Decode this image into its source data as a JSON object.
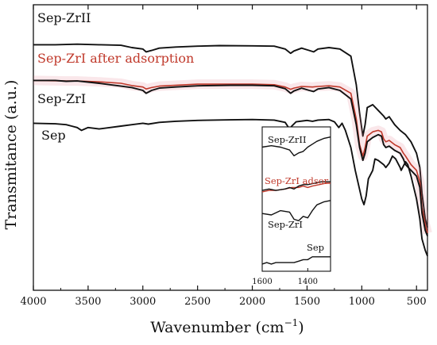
{
  "chart_data": {
    "type": "line",
    "xlabel": "Wavenumber (cm",
    "xlabel_sup": "−1",
    "xlabel_close": ")",
    "ylabel": "Transmitance (a.u.)",
    "xlim": [
      4000,
      400
    ],
    "x_reversed": true,
    "ylim": [
      0,
      1
    ],
    "y_ticks_shown": false,
    "grid": false,
    "legend": "none",
    "xticks": [
      4000,
      3500,
      3000,
      2500,
      2000,
      1500,
      1000,
      500
    ],
    "xtick_labels": [
      "4000",
      "3500",
      "3000",
      "2500",
      "2000",
      "1500",
      "1000",
      "500"
    ],
    "series": [
      {
        "name": "Sep-ZrII",
        "color": "#111111",
        "points": [
          [
            4000,
            0.86
          ],
          [
            3800,
            0.86
          ],
          [
            3600,
            0.862
          ],
          [
            3400,
            0.86
          ],
          [
            3200,
            0.858
          ],
          [
            3100,
            0.85
          ],
          [
            3000,
            0.845
          ],
          [
            2970,
            0.835
          ],
          [
            2920,
            0.84
          ],
          [
            2850,
            0.848
          ],
          [
            2700,
            0.852
          ],
          [
            2500,
            0.855
          ],
          [
            2300,
            0.857
          ],
          [
            2000,
            0.856
          ],
          [
            1800,
            0.855
          ],
          [
            1700,
            0.845
          ],
          [
            1650,
            0.83
          ],
          [
            1620,
            0.838
          ],
          [
            1550,
            0.848
          ],
          [
            1480,
            0.84
          ],
          [
            1440,
            0.835
          ],
          [
            1400,
            0.845
          ],
          [
            1300,
            0.85
          ],
          [
            1200,
            0.845
          ],
          [
            1100,
            0.82
          ],
          [
            1050,
            0.72
          ],
          [
            1020,
            0.62
          ],
          [
            990,
            0.54
          ],
          [
            970,
            0.58
          ],
          [
            950,
            0.64
          ],
          [
            900,
            0.65
          ],
          [
            850,
            0.63
          ],
          [
            800,
            0.61
          ],
          [
            780,
            0.6
          ],
          [
            750,
            0.608
          ],
          [
            700,
            0.58
          ],
          [
            650,
            0.56
          ],
          [
            600,
            0.545
          ],
          [
            550,
            0.52
          ],
          [
            500,
            0.48
          ],
          [
            470,
            0.43
          ],
          [
            450,
            0.34
          ],
          [
            420,
            0.25
          ],
          [
            400,
            0.22
          ]
        ]
      },
      {
        "name": "Sep-ZrI after adsorption",
        "color": "#c0392b",
        "points": [
          [
            4000,
            0.735
          ],
          [
            3700,
            0.733
          ],
          [
            3600,
            0.733
          ],
          [
            3400,
            0.73
          ],
          [
            3200,
            0.725
          ],
          [
            3100,
            0.717
          ],
          [
            3000,
            0.712
          ],
          [
            2970,
            0.705
          ],
          [
            2920,
            0.71
          ],
          [
            2850,
            0.715
          ],
          [
            2500,
            0.722
          ],
          [
            2000,
            0.722
          ],
          [
            1800,
            0.72
          ],
          [
            1700,
            0.712
          ],
          [
            1650,
            0.704
          ],
          [
            1620,
            0.708
          ],
          [
            1550,
            0.714
          ],
          [
            1450,
            0.712
          ],
          [
            1400,
            0.714
          ],
          [
            1300,
            0.716
          ],
          [
            1200,
            0.712
          ],
          [
            1100,
            0.69
          ],
          [
            1050,
            0.6
          ],
          [
            1020,
            0.51
          ],
          [
            990,
            0.47
          ],
          [
            970,
            0.5
          ],
          [
            950,
            0.54
          ],
          [
            900,
            0.555
          ],
          [
            850,
            0.56
          ],
          [
            820,
            0.555
          ],
          [
            800,
            0.53
          ],
          [
            780,
            0.52
          ],
          [
            750,
            0.525
          ],
          [
            700,
            0.51
          ],
          [
            650,
            0.5
          ],
          [
            620,
            0.48
          ],
          [
            600,
            0.47
          ],
          [
            550,
            0.44
          ],
          [
            500,
            0.42
          ],
          [
            470,
            0.38
          ],
          [
            450,
            0.29
          ],
          [
            420,
            0.23
          ],
          [
            400,
            0.2
          ]
        ]
      },
      {
        "name": "Sep-ZrI",
        "color": "#111111",
        "points": [
          [
            4000,
            0.735
          ],
          [
            3800,
            0.735
          ],
          [
            3700,
            0.732
          ],
          [
            3600,
            0.733
          ],
          [
            3400,
            0.725
          ],
          [
            3300,
            0.72
          ],
          [
            3200,
            0.715
          ],
          [
            3100,
            0.71
          ],
          [
            3000,
            0.7
          ],
          [
            2970,
            0.69
          ],
          [
            2920,
            0.7
          ],
          [
            2850,
            0.708
          ],
          [
            2700,
            0.712
          ],
          [
            2500,
            0.716
          ],
          [
            2200,
            0.718
          ],
          [
            2000,
            0.718
          ],
          [
            1800,
            0.716
          ],
          [
            1700,
            0.706
          ],
          [
            1650,
            0.69
          ],
          [
            1620,
            0.698
          ],
          [
            1550,
            0.708
          ],
          [
            1480,
            0.7
          ],
          [
            1440,
            0.696
          ],
          [
            1400,
            0.705
          ],
          [
            1300,
            0.71
          ],
          [
            1200,
            0.7
          ],
          [
            1100,
            0.67
          ],
          [
            1050,
            0.58
          ],
          [
            1020,
            0.5
          ],
          [
            990,
            0.455
          ],
          [
            970,
            0.48
          ],
          [
            950,
            0.52
          ],
          [
            900,
            0.535
          ],
          [
            850,
            0.545
          ],
          [
            820,
            0.54
          ],
          [
            800,
            0.51
          ],
          [
            780,
            0.5
          ],
          [
            750,
            0.505
          ],
          [
            700,
            0.49
          ],
          [
            650,
            0.48
          ],
          [
            620,
            0.46
          ],
          [
            600,
            0.44
          ],
          [
            550,
            0.42
          ],
          [
            500,
            0.4
          ],
          [
            470,
            0.36
          ],
          [
            450,
            0.27
          ],
          [
            420,
            0.21
          ],
          [
            400,
            0.19
          ]
        ]
      },
      {
        "name": "Sep",
        "color": "#111111",
        "points": [
          [
            4000,
            0.585
          ],
          [
            3800,
            0.583
          ],
          [
            3700,
            0.58
          ],
          [
            3650,
            0.575
          ],
          [
            3600,
            0.57
          ],
          [
            3560,
            0.56
          ],
          [
            3500,
            0.57
          ],
          [
            3400,
            0.565
          ],
          [
            3300,
            0.57
          ],
          [
            3200,
            0.575
          ],
          [
            3100,
            0.58
          ],
          [
            3000,
            0.585
          ],
          [
            2950,
            0.582
          ],
          [
            2850,
            0.588
          ],
          [
            2700,
            0.592
          ],
          [
            2500,
            0.595
          ],
          [
            2200,
            0.597
          ],
          [
            2000,
            0.598
          ],
          [
            1800,
            0.596
          ],
          [
            1700,
            0.588
          ],
          [
            1660,
            0.565
          ],
          [
            1640,
            0.575
          ],
          [
            1600,
            0.59
          ],
          [
            1500,
            0.595
          ],
          [
            1450,
            0.592
          ],
          [
            1400,
            0.596
          ],
          [
            1300,
            0.598
          ],
          [
            1250,
            0.59
          ],
          [
            1210,
            0.57
          ],
          [
            1180,
            0.585
          ],
          [
            1150,
            0.56
          ],
          [
            1100,
            0.5
          ],
          [
            1060,
            0.42
          ],
          [
            1030,
            0.37
          ],
          [
            1000,
            0.32
          ],
          [
            980,
            0.3
          ],
          [
            960,
            0.33
          ],
          [
            940,
            0.39
          ],
          [
            900,
            0.42
          ],
          [
            880,
            0.46
          ],
          [
            850,
            0.455
          ],
          [
            800,
            0.44
          ],
          [
            780,
            0.43
          ],
          [
            750,
            0.445
          ],
          [
            720,
            0.47
          ],
          [
            690,
            0.46
          ],
          [
            650,
            0.43
          ],
          [
            640,
            0.42
          ],
          [
            600,
            0.45
          ],
          [
            580,
            0.44
          ],
          [
            550,
            0.4
          ],
          [
            500,
            0.32
          ],
          [
            470,
            0.25
          ],
          [
            450,
            0.18
          ],
          [
            420,
            0.14
          ],
          [
            400,
            0.12
          ]
        ]
      }
    ],
    "annotations": [
      {
        "text": "Sep-ZrII",
        "color": "#111111"
      },
      {
        "text": "Sep-ZrI after adsorption",
        "color": "#c0392b"
      },
      {
        "text": "Sep-ZrI",
        "color": "#111111"
      },
      {
        "text": "Sep",
        "color": "#111111"
      }
    ],
    "inset": {
      "xlim": [
        1600,
        1300
      ],
      "xtick_labels": [
        "1600",
        "1400"
      ],
      "xticks": [
        1600,
        1400
      ],
      "labels": [
        {
          "text": "Sep-ZrII",
          "color": "#111111"
        },
        {
          "text": "Sep-ZrI adsor",
          "color": "#c0392b"
        },
        {
          "text": "Sep-ZrI",
          "color": "#111111"
        },
        {
          "text": "Sep",
          "color": "#111111"
        }
      ],
      "series": [
        {
          "color": "#111111",
          "points": [
            [
              1600,
              0.86
            ],
            [
              1560,
              0.87
            ],
            [
              1520,
              0.86
            ],
            [
              1480,
              0.84
            ],
            [
              1460,
              0.8
            ],
            [
              1440,
              0.82
            ],
            [
              1420,
              0.83
            ],
            [
              1400,
              0.86
            ],
            [
              1380,
              0.88
            ],
            [
              1360,
              0.9
            ],
            [
              1330,
              0.92
            ],
            [
              1300,
              0.93
            ]
          ]
        },
        {
          "color": "#c0392b",
          "points": [
            [
              1600,
              0.55
            ],
            [
              1570,
              0.56
            ],
            [
              1540,
              0.56
            ],
            [
              1500,
              0.57
            ],
            [
              1470,
              0.58
            ],
            [
              1440,
              0.58
            ],
            [
              1420,
              0.59
            ],
            [
              1400,
              0.58
            ],
            [
              1380,
              0.59
            ],
            [
              1350,
              0.6
            ],
            [
              1320,
              0.61
            ],
            [
              1300,
              0.61
            ]
          ]
        },
        {
          "color": "#111111",
          "points": [
            [
              1600,
              0.56
            ],
            [
              1570,
              0.57
            ],
            [
              1540,
              0.56
            ],
            [
              1500,
              0.57
            ],
            [
              1480,
              0.58
            ],
            [
              1460,
              0.57
            ],
            [
              1440,
              0.59
            ],
            [
              1420,
              0.6
            ],
            [
              1400,
              0.6
            ],
            [
              1370,
              0.61
            ],
            [
              1340,
              0.62
            ],
            [
              1300,
              0.62
            ]
          ]
        },
        {
          "color": "#111111",
          "points": [
            [
              1600,
              0.4
            ],
            [
              1560,
              0.39
            ],
            [
              1520,
              0.42
            ],
            [
              1480,
              0.41
            ],
            [
              1460,
              0.36
            ],
            [
              1440,
              0.35
            ],
            [
              1420,
              0.38
            ],
            [
              1400,
              0.37
            ],
            [
              1380,
              0.42
            ],
            [
              1360,
              0.46
            ],
            [
              1330,
              0.48
            ],
            [
              1300,
              0.49
            ]
          ]
        },
        {
          "color": "#111111",
          "points": [
            [
              1600,
              0.05
            ],
            [
              1580,
              0.06
            ],
            [
              1560,
              0.05
            ],
            [
              1540,
              0.06
            ],
            [
              1500,
              0.06
            ],
            [
              1460,
              0.06
            ],
            [
              1440,
              0.07
            ],
            [
              1420,
              0.08
            ],
            [
              1400,
              0.08
            ],
            [
              1380,
              0.1
            ],
            [
              1340,
              0.1
            ],
            [
              1300,
              0.1
            ]
          ]
        }
      ]
    }
  }
}
